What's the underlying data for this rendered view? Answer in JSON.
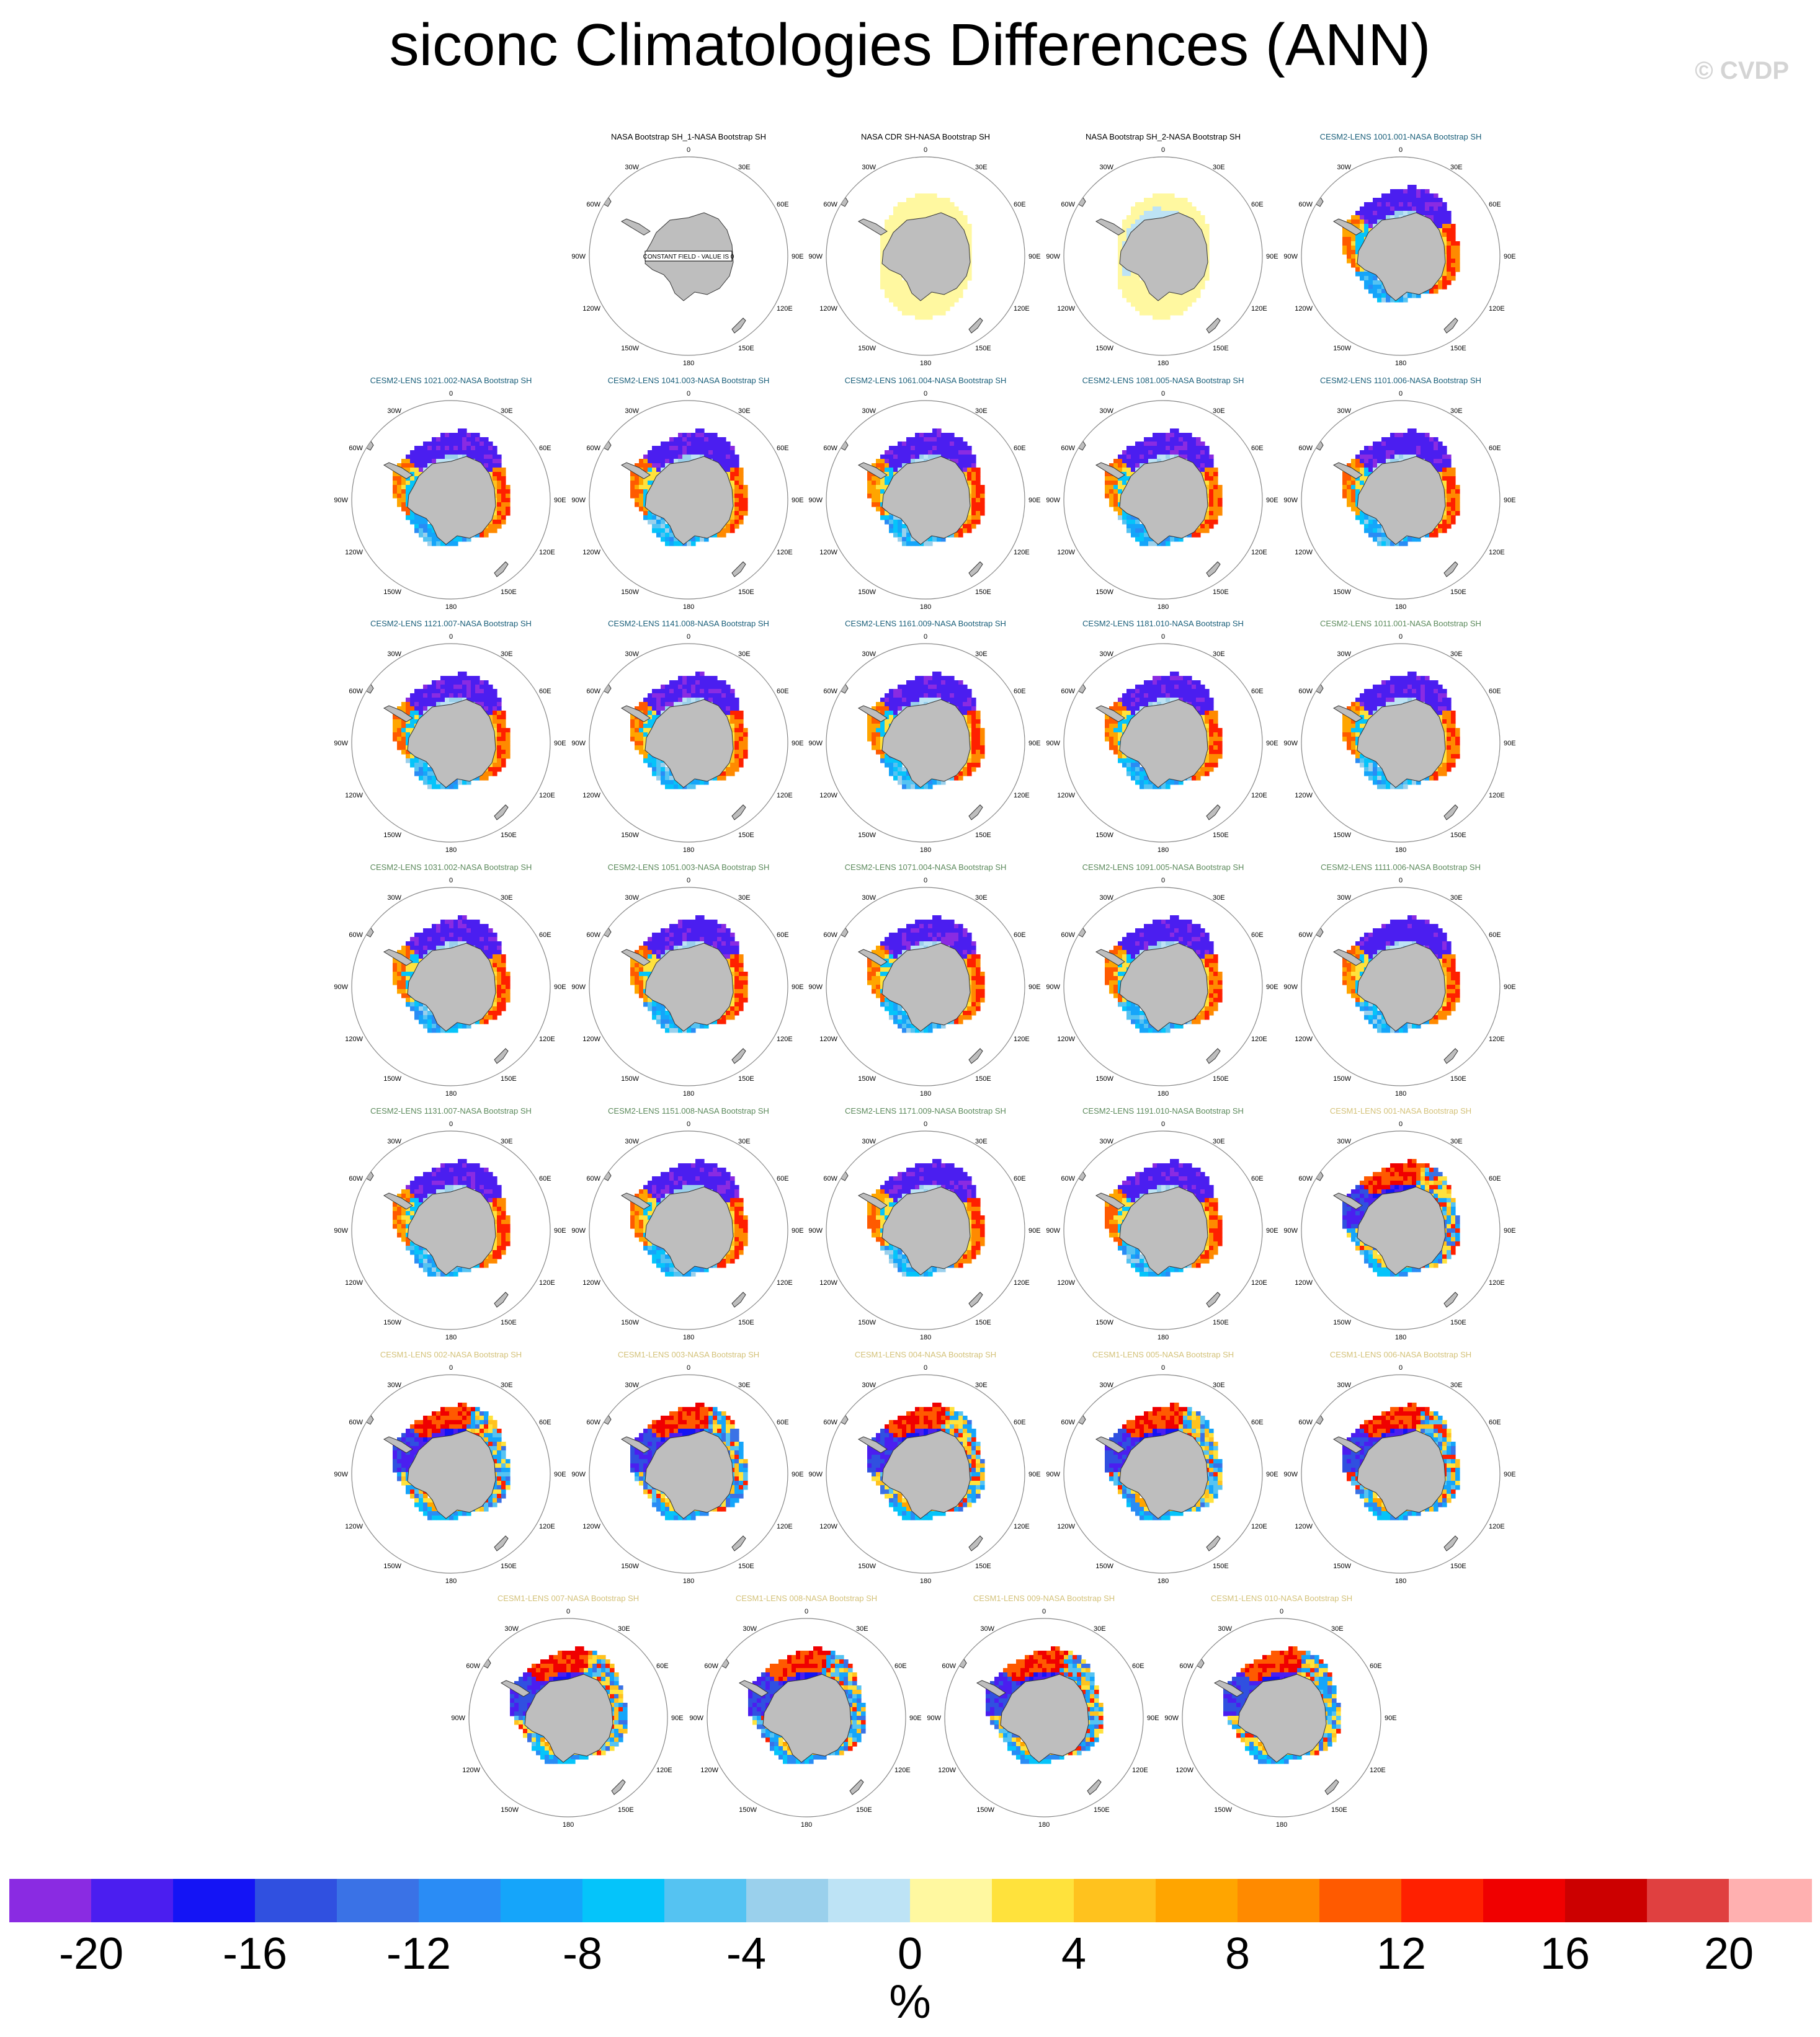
{
  "title": "siconc Climatologies Differences (ANN)",
  "watermark": "© CVDP",
  "panel_style": {
    "observation_title_color": "#000000",
    "cesm2_first_title_color": "#1a5f7a",
    "cesm2_second_title_color": "#5c8a5c",
    "cesm1_title_color": "#d4c27a",
    "land_color": "#bebebe",
    "constant_field_label": "CONSTANT FIELD - VALUE IS 0"
  },
  "map_labels": {
    "top": "0",
    "bottom": "180",
    "upper_left": "30W",
    "upper_right": "30E",
    "left_upper": "60W",
    "right_upper": "60E",
    "left": "90W",
    "right": "90E",
    "left_lower": "120W",
    "right_lower": "120E",
    "lower_left": "150W",
    "lower_right": "150E"
  },
  "panels": [
    {
      "title": "NASA Bootstrap SH_1-NASA Bootstrap SH",
      "group": "obs",
      "pattern": "constant"
    },
    {
      "title": "NASA CDR SH-NASA Bootstrap SH",
      "group": "obs",
      "pattern": "cdr"
    },
    {
      "title": "NASA Bootstrap SH_2-NASA Bootstrap SH",
      "group": "obs",
      "pattern": "bs2"
    },
    {
      "title": "CESM2-LENS 1001.001-NASA Bootstrap SH",
      "group": "cesm2a",
      "pattern": "cesm2"
    },
    {
      "title": "CESM2-LENS 1021.002-NASA Bootstrap SH",
      "group": "cesm2a",
      "pattern": "cesm2"
    },
    {
      "title": "CESM2-LENS 1041.003-NASA Bootstrap SH",
      "group": "cesm2a",
      "pattern": "cesm2"
    },
    {
      "title": "CESM2-LENS 1061.004-NASA Bootstrap SH",
      "group": "cesm2a",
      "pattern": "cesm2"
    },
    {
      "title": "CESM2-LENS 1081.005-NASA Bootstrap SH",
      "group": "cesm2a",
      "pattern": "cesm2"
    },
    {
      "title": "CESM2-LENS 1101.006-NASA Bootstrap SH",
      "group": "cesm2a",
      "pattern": "cesm2"
    },
    {
      "title": "CESM2-LENS 1121.007-NASA Bootstrap SH",
      "group": "cesm2a",
      "pattern": "cesm2"
    },
    {
      "title": "CESM2-LENS 1141.008-NASA Bootstrap SH",
      "group": "cesm2a",
      "pattern": "cesm2"
    },
    {
      "title": "CESM2-LENS 1161.009-NASA Bootstrap SH",
      "group": "cesm2a",
      "pattern": "cesm2"
    },
    {
      "title": "CESM2-LENS 1181.010-NASA Bootstrap SH",
      "group": "cesm2a",
      "pattern": "cesm2"
    },
    {
      "title": "CESM2-LENS 1011.001-NASA Bootstrap SH",
      "group": "cesm2b",
      "pattern": "cesm2"
    },
    {
      "title": "CESM2-LENS 1031.002-NASA Bootstrap SH",
      "group": "cesm2b",
      "pattern": "cesm2"
    },
    {
      "title": "CESM2-LENS 1051.003-NASA Bootstrap SH",
      "group": "cesm2b",
      "pattern": "cesm2"
    },
    {
      "title": "CESM2-LENS 1071.004-NASA Bootstrap SH",
      "group": "cesm2b",
      "pattern": "cesm2"
    },
    {
      "title": "CESM2-LENS 1091.005-NASA Bootstrap SH",
      "group": "cesm2b",
      "pattern": "cesm2"
    },
    {
      "title": "CESM2-LENS 1111.006-NASA Bootstrap SH",
      "group": "cesm2b",
      "pattern": "cesm2"
    },
    {
      "title": "CESM2-LENS 1131.007-NASA Bootstrap SH",
      "group": "cesm2b",
      "pattern": "cesm2"
    },
    {
      "title": "CESM2-LENS 1151.008-NASA Bootstrap SH",
      "group": "cesm2b",
      "pattern": "cesm2"
    },
    {
      "title": "CESM2-LENS 1171.009-NASA Bootstrap SH",
      "group": "cesm2b",
      "pattern": "cesm2"
    },
    {
      "title": "CESM2-LENS 1191.010-NASA Bootstrap SH",
      "group": "cesm2b",
      "pattern": "cesm2"
    },
    {
      "title": "CESM1-LENS 001-NASA Bootstrap SH",
      "group": "cesm1",
      "pattern": "cesm1"
    },
    {
      "title": "CESM1-LENS 002-NASA Bootstrap SH",
      "group": "cesm1",
      "pattern": "cesm1"
    },
    {
      "title": "CESM1-LENS 003-NASA Bootstrap SH",
      "group": "cesm1",
      "pattern": "cesm1"
    },
    {
      "title": "CESM1-LENS 004-NASA Bootstrap SH",
      "group": "cesm1",
      "pattern": "cesm1"
    },
    {
      "title": "CESM1-LENS 005-NASA Bootstrap SH",
      "group": "cesm1",
      "pattern": "cesm1"
    },
    {
      "title": "CESM1-LENS 006-NASA Bootstrap SH",
      "group": "cesm1",
      "pattern": "cesm1"
    },
    {
      "title": "CESM1-LENS 007-NASA Bootstrap SH",
      "group": "cesm1",
      "pattern": "cesm1"
    },
    {
      "title": "CESM1-LENS 008-NASA Bootstrap SH",
      "group": "cesm1",
      "pattern": "cesm1"
    },
    {
      "title": "CESM1-LENS 009-NASA Bootstrap SH",
      "group": "cesm1",
      "pattern": "cesm1"
    },
    {
      "title": "CESM1-LENS 010-NASA Bootstrap SH",
      "group": "cesm1",
      "pattern": "cesm1"
    }
  ],
  "colorbar": {
    "units": "%",
    "colors": [
      "#8a2be2",
      "#4b1ef0",
      "#1414f5",
      "#3050e0",
      "#3a72e6",
      "#2a8cf5",
      "#15a5fa",
      "#05c4fa",
      "#55c3f2",
      "#9ad0ec",
      "#bde3f5",
      "#fff8a0",
      "#ffe23c",
      "#ffc21e",
      "#ffa500",
      "#ff8a00",
      "#ff5a00",
      "#ff2000",
      "#f00000",
      "#cc0000",
      "#e04040",
      "#ffb0b0"
    ],
    "tick_labels": [
      "-20",
      "-16",
      "-12",
      "-8",
      "-4",
      "0",
      "4",
      "8",
      "12",
      "16",
      "20"
    ],
    "tick_values": [
      -20,
      -16,
      -12,
      -8,
      -4,
      0,
      4,
      8,
      12,
      16,
      20
    ],
    "min": -22,
    "max": 22
  }
}
